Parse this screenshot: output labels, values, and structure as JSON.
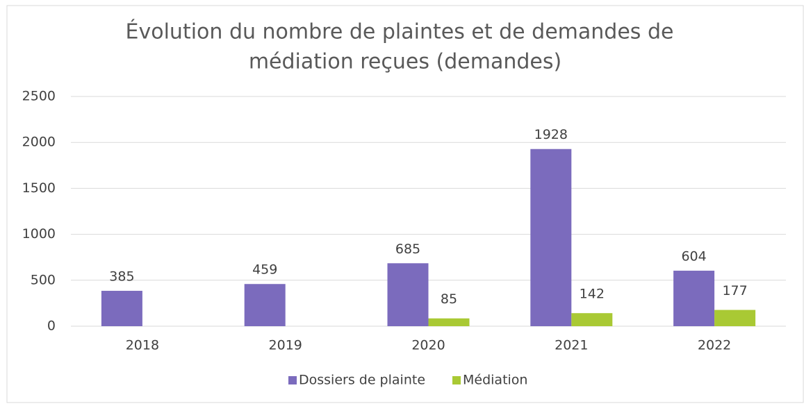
{
  "chart_data": {
    "type": "bar",
    "title": [
      "Évolution du nombre de plaintes et de demandes de",
      "médiation reçues (demandes)"
    ],
    "categories": [
      "2018",
      "2019",
      "2020",
      "2021",
      "2022"
    ],
    "series": [
      {
        "name": "Dossiers de plainte",
        "color": "#7b6bbd",
        "values": [
          385,
          459,
          685,
          1928,
          604
        ]
      },
      {
        "name": "Médiation",
        "color": "#a9c934",
        "values": [
          null,
          null,
          85,
          142,
          177
        ]
      }
    ],
    "ylim": [
      0,
      2500
    ],
    "yticks": [
      0,
      500,
      1000,
      1500,
      2000,
      2500
    ],
    "grid": true,
    "legend": "bottom"
  }
}
